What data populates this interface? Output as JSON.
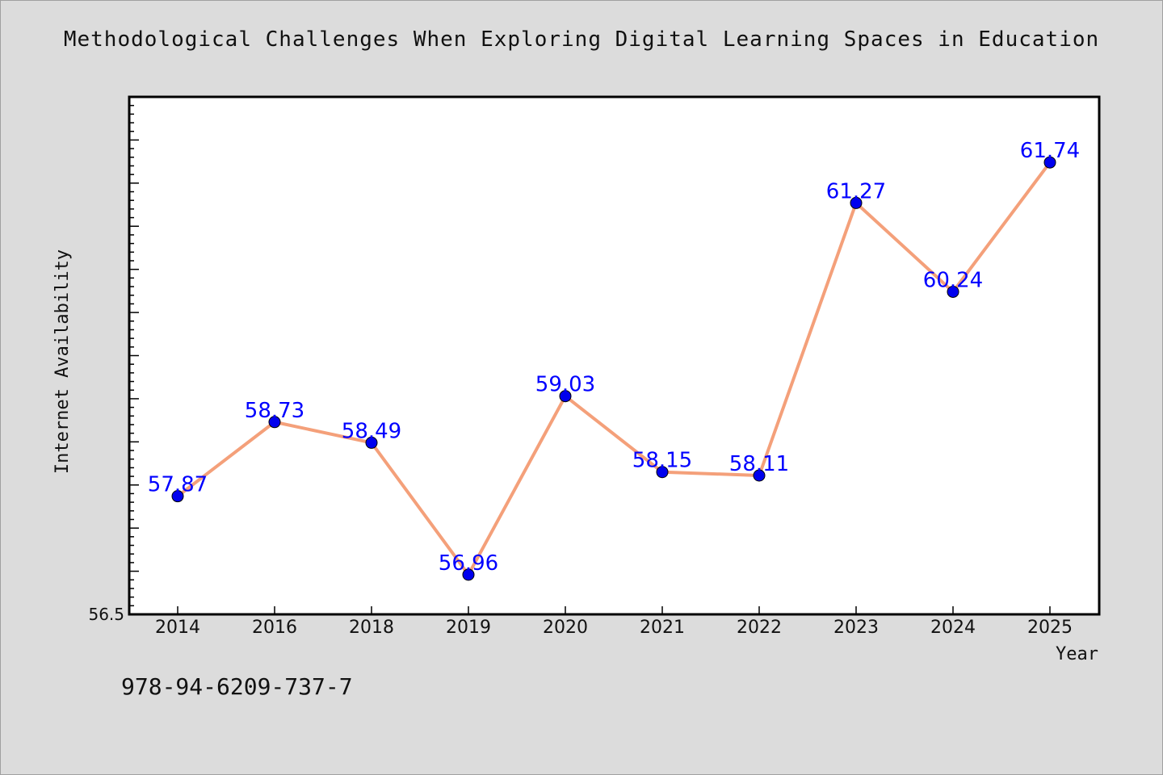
{
  "chart_data": {
    "type": "line",
    "title": "Methodological Challenges When Exploring Digital Learning Spaces in Education",
    "xlabel": "Year",
    "ylabel": "Internet Availability",
    "categories": [
      "2014",
      "2016",
      "2018",
      "2019",
      "2020",
      "2021",
      "2022",
      "2023",
      "2024",
      "2025"
    ],
    "series": [
      {
        "values": [
          57.87,
          58.73,
          58.49,
          56.96,
          59.03,
          58.15,
          58.11,
          61.27,
          60.24,
          61.74
        ],
        "labels": [
          "57.87",
          "58.73",
          "58.49",
          "56.96",
          "59.03",
          "58.15",
          "58.11",
          "61.27",
          "60.24",
          "61.74"
        ]
      }
    ],
    "ylim": [
      56.5,
      62.5
    ],
    "y_tick_labels": [
      "56.5"
    ],
    "grid": false,
    "line_color": "#f4a07a",
    "marker_color": "#0000ee",
    "label_color": "#0000ff"
  },
  "footer": {
    "isbn": "978-94-6209-737-7"
  }
}
